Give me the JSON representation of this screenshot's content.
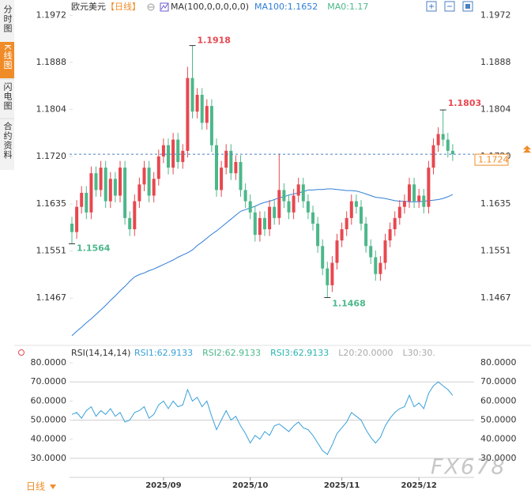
{
  "ui": {
    "tabs": [
      "分时图",
      "K线图",
      "闪电图",
      "合约资料"
    ],
    "bottom_tab": "日线",
    "watermark": "FX678"
  },
  "chart_data": [
    {
      "type": "candlestick",
      "title": "欧元美元",
      "subtitle": "【日线】",
      "indicator": "MA(100,0,0,0,0,0)",
      "up_color": "#e8474f",
      "down_color": "#4cb88a",
      "ylim": [
        1.1384,
        1.1988
      ],
      "yticks": [
        1.1972,
        1.1888,
        1.1804,
        {
          "value": 1.172,
          "label": "1.1720"
        },
        1.1635,
        1.1551,
        1.1467
      ],
      "open": [
        1.16,
        1.1585,
        1.163,
        1.1655,
        1.162,
        1.169,
        1.166,
        1.17,
        1.164,
        1.168,
        1.165,
        1.17,
        1.161,
        1.159,
        1.164,
        1.167,
        1.17,
        1.165,
        1.168,
        1.172,
        1.174,
        1.17,
        1.175,
        1.171,
        1.173,
        1.186,
        1.18,
        1.183,
        1.178,
        1.181,
        1.174,
        1.166,
        1.17,
        1.173,
        1.169,
        1.171,
        1.166,
        1.164,
        1.162,
        1.158,
        1.161,
        1.159,
        1.163,
        1.161,
        1.166,
        1.164,
        1.162,
        1.165,
        1.167,
        1.164,
        1.162,
        1.16,
        1.156,
        1.152,
        1.149,
        1.153,
        1.157,
        1.159,
        1.161,
        1.164,
        1.163,
        1.16,
        1.156,
        1.154,
        1.151,
        1.153,
        1.157,
        1.159,
        1.161,
        1.163,
        1.164,
        1.167,
        1.164,
        1.165,
        1.163,
        1.17,
        1.174,
        1.176,
        1.175,
        1.173
      ],
      "high": [
        1.1612,
        1.1642,
        1.1667,
        1.1667,
        1.1702,
        1.1702,
        1.1712,
        1.1712,
        1.1692,
        1.1692,
        1.1712,
        1.1712,
        1.1622,
        1.1652,
        1.1682,
        1.1712,
        1.1712,
        1.1692,
        1.1732,
        1.1752,
        1.1752,
        1.1762,
        1.1762,
        1.1742,
        1.188,
        1.1918,
        1.1842,
        1.1842,
        1.1822,
        1.1822,
        1.1752,
        1.1712,
        1.1742,
        1.1742,
        1.1722,
        1.1722,
        1.1672,
        1.1652,
        1.1632,
        1.1622,
        1.1622,
        1.1642,
        1.1642,
        1.1725,
        1.1672,
        1.1652,
        1.1662,
        1.1682,
        1.1682,
        1.1652,
        1.1632,
        1.1612,
        1.1572,
        1.1532,
        1.1542,
        1.1582,
        1.1602,
        1.1622,
        1.1652,
        1.1652,
        1.1642,
        1.1612,
        1.1572,
        1.1552,
        1.1542,
        1.1582,
        1.1602,
        1.1622,
        1.1642,
        1.1652,
        1.1682,
        1.1682,
        1.1662,
        1.1662,
        1.1712,
        1.1752,
        1.1772,
        1.1803,
        1.1762,
        1.1742
      ],
      "low": [
        1.1564,
        1.1573,
        1.1618,
        1.1608,
        1.1608,
        1.1648,
        1.1648,
        1.1628,
        1.1628,
        1.1638,
        1.1638,
        1.1598,
        1.1578,
        1.1578,
        1.1628,
        1.1658,
        1.1638,
        1.1638,
        1.1668,
        1.1708,
        1.1688,
        1.1688,
        1.1698,
        1.1698,
        1.1718,
        1.1788,
        1.1788,
        1.1768,
        1.1768,
        1.1728,
        1.1648,
        1.1648,
        1.1688,
        1.1678,
        1.1678,
        1.1648,
        1.1628,
        1.1608,
        1.1568,
        1.1568,
        1.1578,
        1.1578,
        1.1598,
        1.1598,
        1.1628,
        1.1608,
        1.1608,
        1.1638,
        1.1628,
        1.1608,
        1.1588,
        1.1548,
        1.1508,
        1.1468,
        1.1478,
        1.1518,
        1.1558,
        1.1578,
        1.1598,
        1.1618,
        1.1588,
        1.1548,
        1.1528,
        1.1498,
        1.1498,
        1.1518,
        1.1558,
        1.1578,
        1.1598,
        1.1618,
        1.1628,
        1.1628,
        1.1628,
        1.1618,
        1.1618,
        1.1688,
        1.1728,
        1.1738,
        1.1718,
        1.1712
      ],
      "close": [
        1.1585,
        1.163,
        1.1655,
        1.162,
        1.169,
        1.166,
        1.17,
        1.164,
        1.168,
        1.165,
        1.17,
        1.161,
        1.159,
        1.164,
        1.167,
        1.17,
        1.165,
        1.168,
        1.172,
        1.174,
        1.17,
        1.175,
        1.171,
        1.173,
        1.186,
        1.18,
        1.183,
        1.178,
        1.181,
        1.174,
        1.166,
        1.17,
        1.173,
        1.169,
        1.171,
        1.166,
        1.164,
        1.162,
        1.158,
        1.161,
        1.159,
        1.163,
        1.161,
        1.166,
        1.164,
        1.162,
        1.165,
        1.167,
        1.164,
        1.162,
        1.16,
        1.156,
        1.152,
        1.149,
        1.153,
        1.157,
        1.159,
        1.161,
        1.164,
        1.163,
        1.16,
        1.156,
        1.154,
        1.151,
        1.153,
        1.157,
        1.159,
        1.161,
        1.163,
        1.164,
        1.167,
        1.164,
        1.165,
        1.163,
        1.17,
        1.174,
        1.176,
        1.175,
        1.173,
        1.1724
      ],
      "series": [
        {
          "name": "MA100:1.1652",
          "color": "#2f7ed8",
          "values": [
            1.14,
            1.1408,
            1.1415,
            1.1423,
            1.143,
            1.1438,
            1.1446,
            1.1454,
            1.1463,
            1.1471,
            1.148,
            1.1488,
            1.1497,
            1.1505,
            1.1509,
            1.1512,
            1.1516,
            1.1519,
            1.1523,
            1.1527,
            1.1531,
            1.1535,
            1.154,
            1.1544,
            1.1548,
            1.1553,
            1.1561,
            1.1567,
            1.1574,
            1.1581,
            1.1587,
            1.1594,
            1.1601,
            1.1608,
            1.1615,
            1.1622,
            1.1625,
            1.1628,
            1.1631,
            1.1635,
            1.1638,
            1.164,
            1.1643,
            1.1646,
            1.1648,
            1.1651,
            1.1653,
            1.1655,
            1.1657,
            1.166,
            1.166,
            1.1661,
            1.1661,
            1.1662,
            1.1662,
            1.1661,
            1.166,
            1.1659,
            1.1659,
            1.1658,
            1.1656,
            1.1653,
            1.165,
            1.1647,
            1.1646,
            1.1645,
            1.1643,
            1.1641,
            1.164,
            1.164,
            1.1639,
            1.1639,
            1.1639,
            1.164,
            1.1641,
            1.1642,
            1.1643,
            1.1645,
            1.1648,
            1.1652
          ]
        }
      ],
      "notes": [
        {
          "text": "MA0:1.17",
          "color": "#4cb88a"
        }
      ]
    },
    {
      "type": "line",
      "title": "RSI(14,14,14)",
      "ylim": [
        20,
        85
      ],
      "yticks": [
        {
          "value": 80,
          "label": "80.0000"
        },
        {
          "value": 70,
          "label": "70.0000"
        },
        {
          "value": 60,
          "label": "60.0000"
        },
        {
          "value": 50,
          "label": "50.0000"
        },
        {
          "value": 40,
          "label": "40.0000"
        },
        {
          "value": 30,
          "label": "30.0000"
        }
      ],
      "hlines": [
        70,
        50,
        30
      ],
      "categories": [
        null,
        null,
        null,
        null,
        null,
        null,
        null,
        null,
        null,
        null,
        null,
        null,
        null,
        null,
        null,
        null,
        null,
        null,
        null,
        "2025/09",
        null,
        null,
        null,
        null,
        null,
        null,
        null,
        null,
        null,
        null,
        null,
        null,
        null,
        null,
        null,
        null,
        null,
        "2025/10",
        null,
        null,
        null,
        null,
        null,
        null,
        null,
        null,
        null,
        null,
        null,
        null,
        null,
        null,
        null,
        null,
        null,
        null,
        "2025/11",
        null,
        null,
        null,
        null,
        null,
        null,
        null,
        null,
        null,
        null,
        null,
        null,
        null,
        null,
        null,
        "2025/12",
        null,
        null,
        null,
        null,
        null,
        null,
        null
      ],
      "series": [
        {
          "name": "RSI1:62.9133",
          "color": "#3aa0d8",
          "values": [
            53,
            54,
            51,
            55,
            57,
            52,
            55,
            53,
            56,
            52,
            54,
            49,
            50,
            54,
            55,
            57,
            51,
            53,
            58,
            60,
            56,
            60,
            57,
            58,
            66,
            60,
            62,
            57,
            60,
            52,
            45,
            50,
            55,
            50,
            52,
            47,
            43,
            38,
            42,
            40,
            44,
            42,
            47,
            48,
            46,
            44,
            47,
            49,
            46,
            45,
            42,
            38,
            34,
            32,
            37,
            43,
            46,
            49,
            54,
            52,
            50,
            45,
            41,
            38,
            41,
            47,
            51,
            54,
            56,
            57,
            63,
            57,
            59,
            56,
            64,
            68,
            70,
            68,
            66,
            62.9133
          ]
        }
      ],
      "notes": [
        {
          "text": "RSI2:62.9133",
          "color": "#4cb88a"
        },
        {
          "text": "RSI3:62.9133",
          "color": "#2bb3b0"
        },
        {
          "text": "L20:20.0000",
          "color": "#aaaaaa"
        },
        {
          "text": "L30:30.",
          "color": "#aaaaaa"
        }
      ]
    }
  ]
}
